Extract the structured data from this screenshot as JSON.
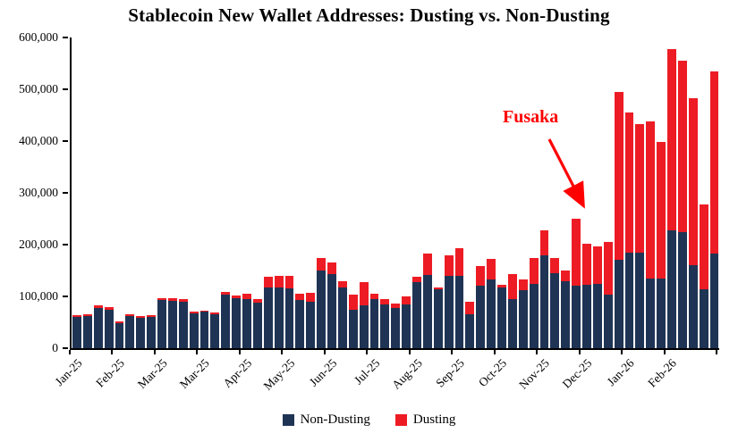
{
  "title": "Stablecoin New Wallet Addresses: Dusting vs. Non-Dusting",
  "legend": {
    "items": [
      {
        "label": "Non-Dusting",
        "color": "#1F3455"
      },
      {
        "label": "Dusting",
        "color": "#ED1C24"
      }
    ]
  },
  "chart_data": {
    "type": "bar",
    "stacked": true,
    "title": "Stablecoin New Wallet Addresses: Dusting vs. Non-Dusting",
    "xlabel": "",
    "ylabel": "",
    "ylim": [
      0,
      600000
    ],
    "yticks": [
      0,
      100000,
      200000,
      300000,
      400000,
      500000,
      600000
    ],
    "ytick_labels": [
      "0",
      "100,000",
      "200,000",
      "300,000",
      "400,000",
      "500,000",
      "600,000"
    ],
    "grid": false,
    "legend_position": "bottom",
    "x_unit": "week",
    "x_labels": [
      {
        "index": 0,
        "label": "Jan-25"
      },
      {
        "index": 4,
        "label": "Feb-25"
      },
      {
        "index": 8,
        "label": "Mar-25"
      },
      {
        "index": 12,
        "label": "Mar-25"
      },
      {
        "index": 16,
        "label": "Apr-25"
      },
      {
        "index": 20,
        "label": "May-25"
      },
      {
        "index": 24,
        "label": "Jun-25"
      },
      {
        "index": 28,
        "label": "Jul-25"
      },
      {
        "index": 32,
        "label": "Aug-25"
      },
      {
        "index": 36,
        "label": "Sep-25"
      },
      {
        "index": 40,
        "label": "Oct-25"
      },
      {
        "index": 44,
        "label": "Nov-25"
      },
      {
        "index": 48,
        "label": "Dec-25"
      },
      {
        "index": 52,
        "label": "Jan-26"
      },
      {
        "index": 56,
        "label": "Feb-26"
      }
    ],
    "series": [
      {
        "name": "Non-Dusting",
        "color": "#1F3455",
        "values": [
          60000,
          62000,
          78000,
          75000,
          48000,
          62000,
          58000,
          60000,
          93000,
          92000,
          90000,
          68000,
          70000,
          66000,
          104000,
          96000,
          95000,
          88000,
          118000,
          118000,
          115000,
          93000,
          90000,
          150000,
          143000,
          118000,
          75000,
          83000,
          95000,
          85000,
          78000,
          85000,
          128000,
          142000,
          113000,
          140000,
          140000,
          65000,
          120000,
          132000,
          118000,
          95000,
          112000,
          125000,
          180000,
          145000,
          130000,
          120000,
          122000,
          125000,
          103000,
          170000,
          185000,
          185000,
          135000,
          135000,
          228000,
          225000,
          160000,
          113000,
          182000
        ]
      },
      {
        "name": "Dusting",
        "color": "#ED1C24",
        "values": [
          3000,
          3000,
          5000,
          5000,
          4000,
          4000,
          4000,
          3000,
          4000,
          5000,
          5000,
          3000,
          3000,
          3000,
          4000,
          5000,
          10000,
          7000,
          20000,
          22000,
          25000,
          12000,
          17000,
          25000,
          22000,
          12000,
          28000,
          45000,
          10000,
          10000,
          8000,
          15000,
          10000,
          40000,
          5000,
          40000,
          53000,
          25000,
          38000,
          41000,
          5000,
          48000,
          20000,
          50000,
          48000,
          30000,
          20000,
          130000,
          80000,
          72000,
          102000,
          325000,
          270000,
          247000,
          303000,
          263000,
          350000,
          330000,
          322000,
          165000,
          353000
        ]
      }
    ],
    "annotation": {
      "text": "Fusaka",
      "color": "#FF0000",
      "points_to_index": 48
    }
  }
}
